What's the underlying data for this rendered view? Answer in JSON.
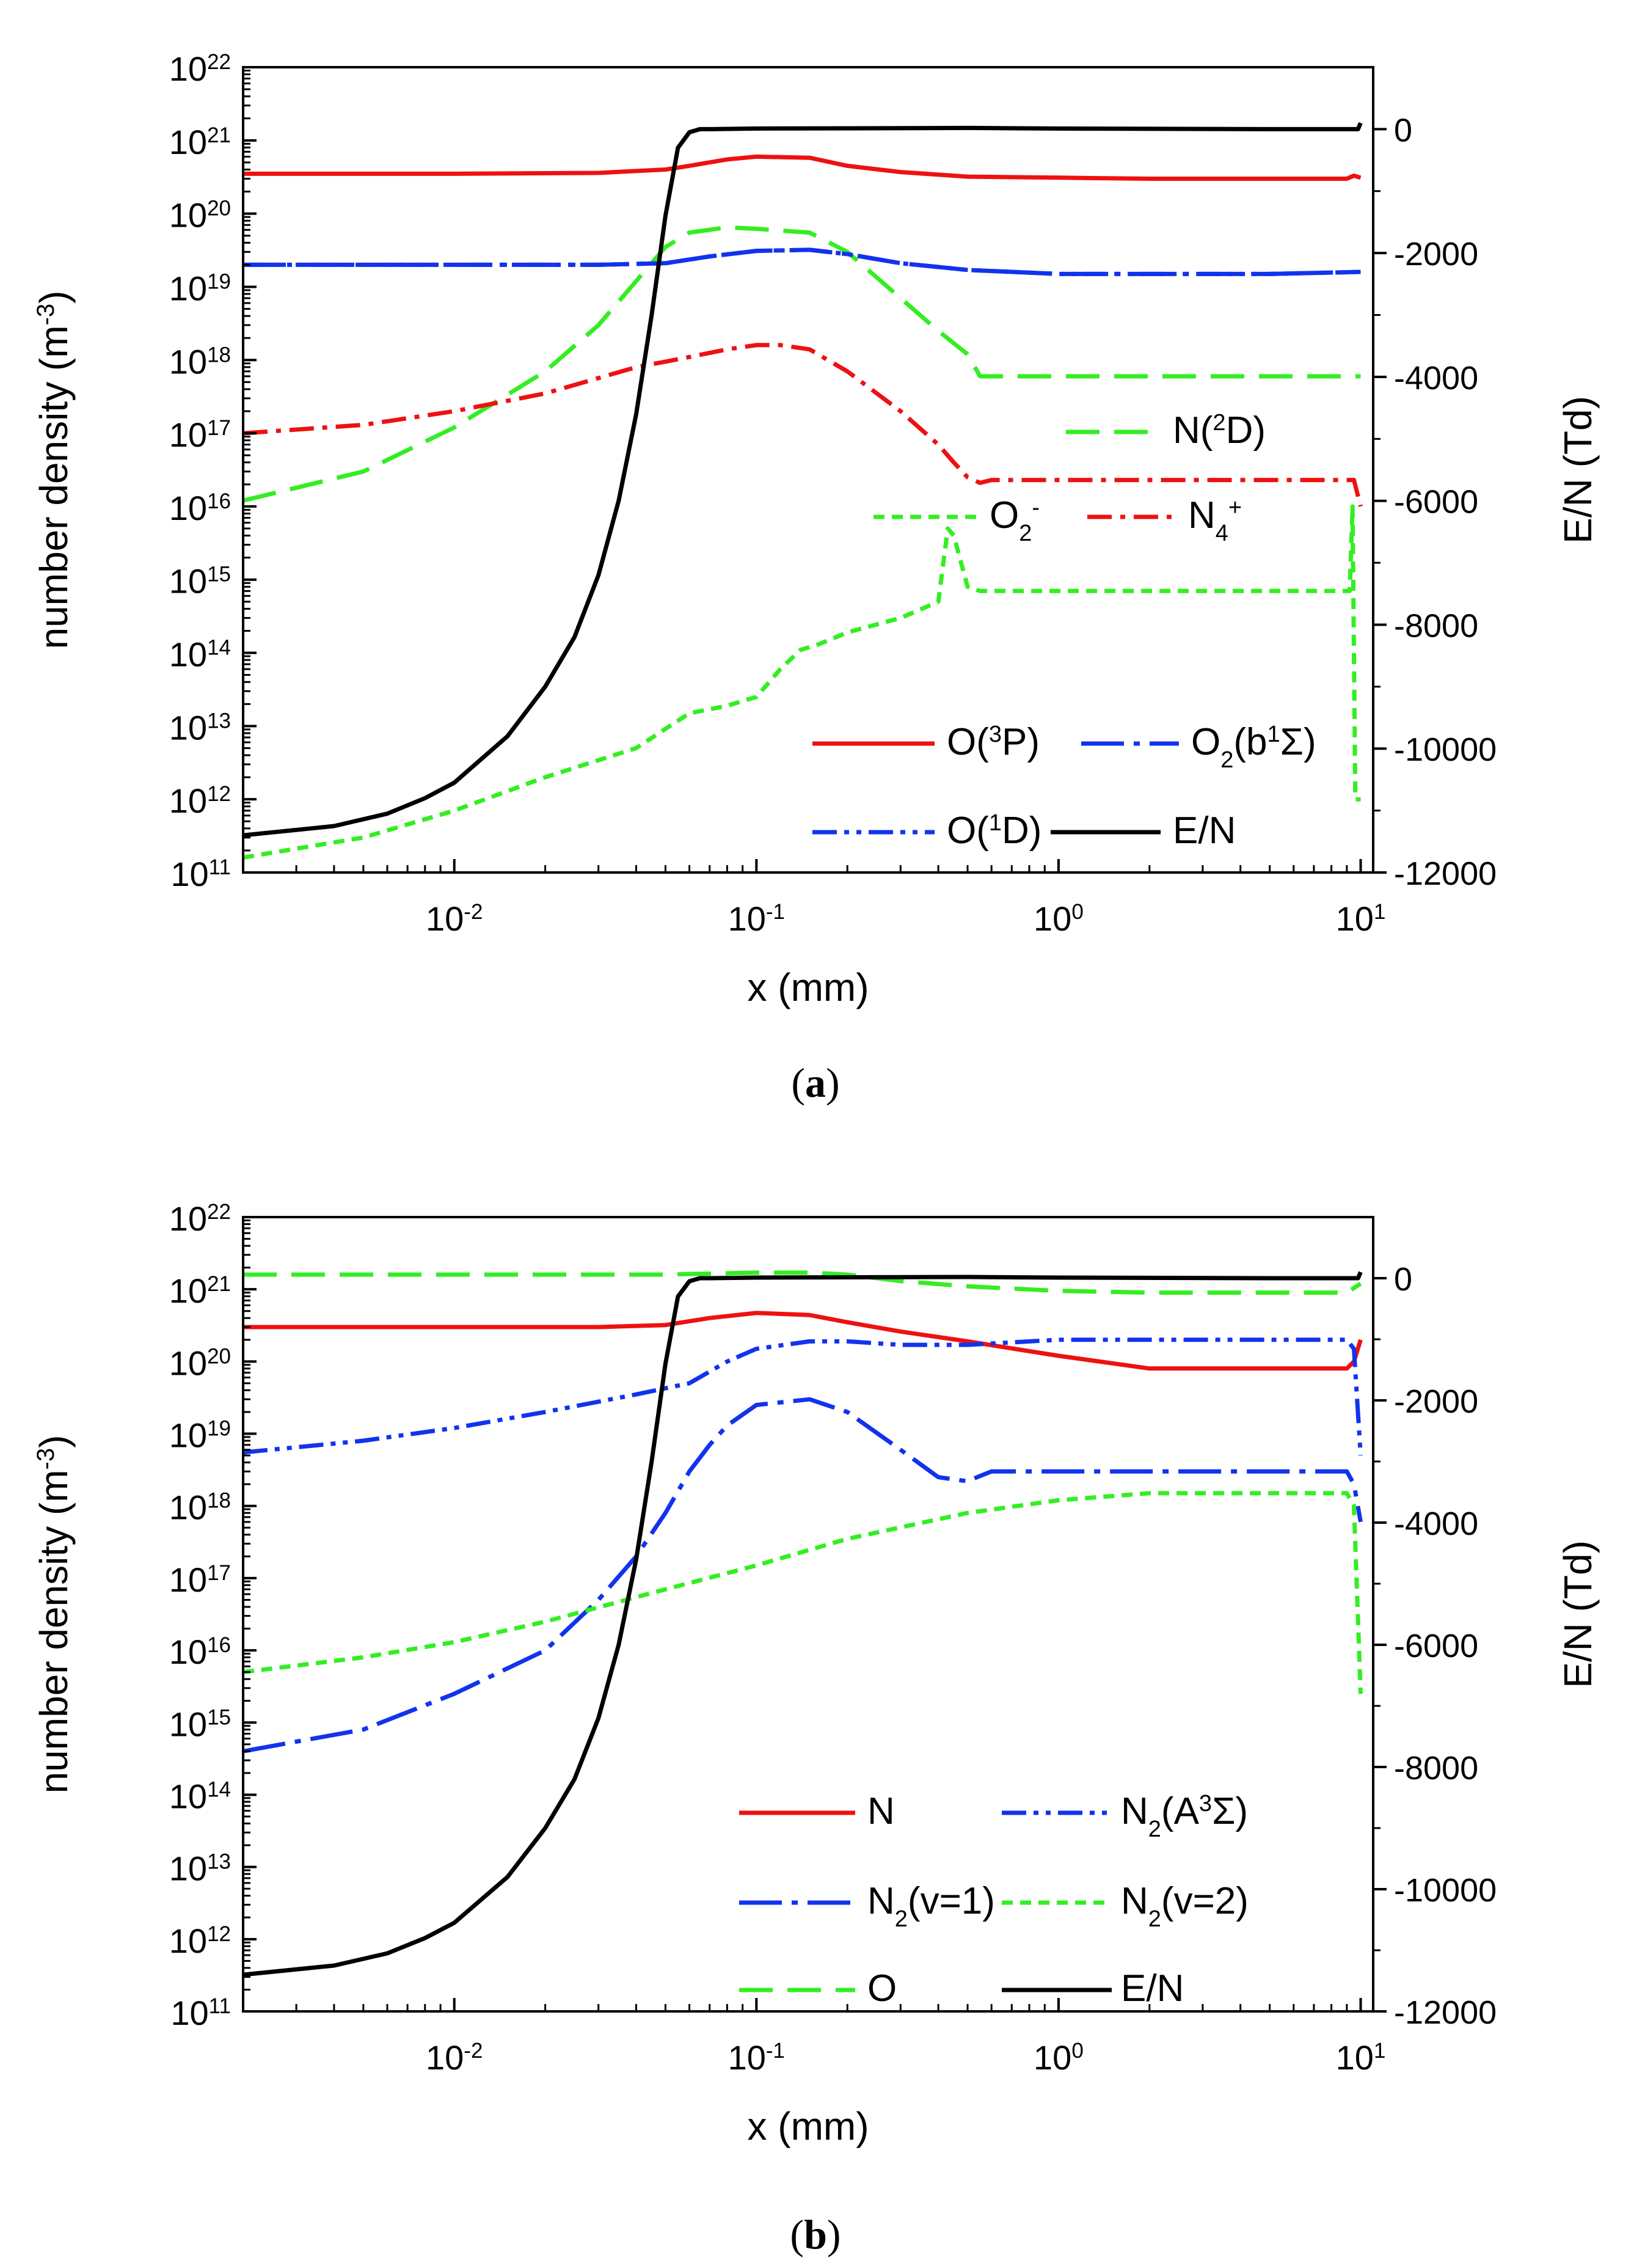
{
  "figure": {
    "panels": [
      "a",
      "b"
    ],
    "captions": [
      {
        "open": "(",
        "letter": "a",
        "close": ")"
      },
      {
        "open": "(",
        "letter": "b",
        "close": ")"
      }
    ]
  },
  "chart_data": [
    {
      "type": "line",
      "panel": "a",
      "xlabel": "x (mm)",
      "ylabel": "number density (m",
      "ylabel_sup": "-3",
      "ylabel_close": ")",
      "y2label": "E/N (Td)",
      "x_scale": "log",
      "xlim": [
        0.002,
        11
      ],
      "y_scale": "log",
      "ylim": [
        100000000000.0,
        1e+22
      ],
      "y2lim": [
        -12000,
        1000
      ],
      "x_ticks": [
        {
          "base": "10",
          "exp": "-2",
          "value": 0.01
        },
        {
          "base": "10",
          "exp": "-1",
          "value": 0.1
        },
        {
          "base": "10",
          "exp": "0",
          "value": 1
        },
        {
          "base": "10",
          "exp": "1",
          "value": 10
        }
      ],
      "y_ticks": [
        {
          "base": "10",
          "exp": "11"
        },
        {
          "base": "10",
          "exp": "12"
        },
        {
          "base": "10",
          "exp": "13"
        },
        {
          "base": "10",
          "exp": "14"
        },
        {
          "base": "10",
          "exp": "15"
        },
        {
          "base": "10",
          "exp": "16"
        },
        {
          "base": "10",
          "exp": "17"
        },
        {
          "base": "10",
          "exp": "18"
        },
        {
          "base": "10",
          "exp": "19"
        },
        {
          "base": "10",
          "exp": "20"
        },
        {
          "base": "10",
          "exp": "21"
        },
        {
          "base": "10",
          "exp": "22"
        }
      ],
      "y2_ticks": [
        "-12000",
        "-10000",
        "-8000",
        "-6000",
        "-4000",
        "-2000",
        "0"
      ],
      "legend_position": "bottom-right",
      "series": [
        {
          "name": "N(2D)",
          "label": [
            [
              "N(",
              ""
            ],
            [
              "2",
              "sup"
            ],
            [
              "D)",
              ""
            ]
          ],
          "color": "#33ee22",
          "dash": "dashed",
          "axis": "left",
          "x": [
            0.002,
            0.005,
            0.01,
            0.02,
            0.03,
            0.04,
            0.05,
            0.06,
            0.08,
            0.1,
            0.15,
            0.2,
            0.3,
            0.4,
            0.5,
            0.55,
            1,
            2,
            5,
            10
          ],
          "y": [
            1.2e+16,
            3e+16,
            1.2e+17,
            7e+17,
            3e+18,
            1.2e+19,
            3.5e+19,
            5.5e+19,
            6.5e+19,
            6.2e+19,
            5.5e+19,
            3e+19,
            7e+18,
            2.5e+18,
            1.2e+18,
            6e+17,
            6e+17,
            6e+17,
            6e+17,
            6e+17
          ]
        },
        {
          "name": "O2-",
          "label": [
            [
              "O",
              ""
            ],
            [
              "2",
              "sub"
            ],
            [
              "-",
              "sup"
            ]
          ],
          "color": "#33ee22",
          "dash": "short-dashed",
          "axis": "left",
          "x": [
            0.002,
            0.005,
            0.01,
            0.02,
            0.04,
            0.06,
            0.07,
            0.08,
            0.1,
            0.12,
            0.14,
            0.16,
            0.2,
            0.3,
            0.4,
            0.43,
            0.45,
            0.5,
            0.55,
            1,
            5,
            9.2,
            9.4,
            9.6,
            10
          ],
          "y": [
            160000000000.0,
            300000000000.0,
            700000000000.0,
            2000000000000.0,
            5000000000000.0,
            15000000000000.0,
            17000000000000.0,
            19000000000000.0,
            25000000000000.0,
            60000000000000.0,
            110000000000000.0,
            130000000000000.0,
            190000000000000.0,
            300000000000000.0,
            500000000000000.0,
            5000000000000000.0,
            4000000000000000.0,
            800000000000000.0,
            700000000000000.0,
            700000000000000.0,
            700000000000000.0,
            700000000000000.0,
            1e+16,
            1000000000000.0,
            1000000000000.0
          ]
        },
        {
          "name": "N4+",
          "label": [
            [
              "N",
              ""
            ],
            [
              "4",
              "sub"
            ],
            [
              "+",
              "sup"
            ]
          ],
          "color": "#ee1111",
          "dash": "dash-dot",
          "axis": "left",
          "x": [
            0.002,
            0.005,
            0.01,
            0.02,
            0.04,
            0.05,
            0.06,
            0.08,
            0.1,
            0.12,
            0.15,
            0.2,
            0.3,
            0.4,
            0.45,
            0.5,
            0.55,
            0.6,
            1,
            5,
            9.5,
            10
          ],
          "y": [
            1e+17,
            1.3e+17,
            2e+17,
            3.5e+17,
            8e+17,
            9.5e+17,
            1.1e+18,
            1.4e+18,
            1.6e+18,
            1.6e+18,
            1.4e+18,
            7e+17,
            2e+17,
            7e+16,
            4e+16,
            2.5e+16,
            2.1e+16,
            2.3e+16,
            2.3e+16,
            2.3e+16,
            2.3e+16,
            1e+16
          ]
        },
        {
          "name": "O(3P)",
          "label": [
            [
              "O(",
              ""
            ],
            [
              "3",
              "sup"
            ],
            [
              "P)",
              ""
            ]
          ],
          "color": "#ee1111",
          "dash": "solid",
          "axis": "left",
          "x": [
            0.002,
            0.01,
            0.03,
            0.05,
            0.06,
            0.08,
            0.1,
            0.15,
            0.2,
            0.3,
            0.5,
            1,
            2,
            5,
            9,
            9.5,
            10
          ],
          "y": [
            3.5e+20,
            3.5e+20,
            3.6e+20,
            4e+20,
            4.5e+20,
            5.5e+20,
            6e+20,
            5.8e+20,
            4.5e+20,
            3.7e+20,
            3.2e+20,
            3.1e+20,
            3e+20,
            3e+20,
            3e+20,
            3.3e+20,
            3.1e+20
          ]
        },
        {
          "name": "O2(b1Σ)",
          "label": [
            [
              "O",
              ""
            ],
            [
              "2",
              "sub"
            ],
            [
              "(b",
              ""
            ],
            [
              "1",
              "sup"
            ],
            [
              "Σ)",
              ""
            ]
          ],
          "color": "#1133ee",
          "dash": "long-dash-dot",
          "axis": "left",
          "x": [
            0.002,
            0.01,
            0.03,
            0.05,
            0.07,
            0.1,
            0.15,
            0.2,
            0.3,
            0.5,
            1,
            2,
            5,
            10
          ],
          "y": [
            2e+19,
            2e+19,
            2e+19,
            2.1e+19,
            2.6e+19,
            3.1e+19,
            3.2e+19,
            2.8e+19,
            2.1e+19,
            1.7e+19,
            1.5e+19,
            1.5e+19,
            1.5e+19,
            1.6e+19
          ]
        },
        {
          "name": "O(1D)",
          "label": [
            [
              "O(",
              ""
            ],
            [
              "1",
              "sup"
            ],
            [
              "D)",
              ""
            ]
          ],
          "color": "#1133ee",
          "dash": "dash-dot-dot",
          "axis": "left",
          "x": [
            0.002,
            0.01,
            0.03,
            0.05,
            0.07,
            0.1,
            0.15,
            0.2,
            0.3,
            0.5,
            1,
            2,
            5,
            10
          ],
          "y": [
            2e+19,
            2e+19,
            2e+19,
            2.1e+19,
            2.6e+19,
            3.1e+19,
            3.2e+19,
            2.8e+19,
            2.1e+19,
            1.7e+19,
            1.5e+19,
            1.5e+19,
            1.5e+19,
            1.6e+19
          ]
        },
        {
          "name": "E/N",
          "label": [
            [
              "E/N",
              ""
            ]
          ],
          "color": "#000000",
          "dash": "solid",
          "axis": "right",
          "x": [
            0.002,
            0.004,
            0.006,
            0.008,
            0.01,
            0.015,
            0.02,
            0.025,
            0.03,
            0.035,
            0.04,
            0.045,
            0.05,
            0.055,
            0.06,
            0.065,
            0.07,
            0.1,
            0.5,
            1,
            5,
            9.8,
            10
          ],
          "y": [
            -11400,
            -11250,
            -11050,
            -10800,
            -10550,
            -9800,
            -9000,
            -8200,
            -7200,
            -6000,
            -4600,
            -3000,
            -1400,
            -300,
            -50,
            0,
            0,
            10,
            20,
            10,
            0,
            0,
            100
          ]
        }
      ]
    },
    {
      "type": "line",
      "panel": "b",
      "xlabel": "x (mm)",
      "ylabel": "number density (m",
      "ylabel_sup": "-3",
      "ylabel_close": ")",
      "y2label": "E/N (Td)",
      "x_scale": "log",
      "xlim": [
        0.002,
        11
      ],
      "y_scale": "log",
      "ylim": [
        100000000000.0,
        1e+22
      ],
      "y2lim": [
        -12000,
        1000
      ],
      "x_ticks": [
        {
          "base": "10",
          "exp": "-2",
          "value": 0.01
        },
        {
          "base": "10",
          "exp": "-1",
          "value": 0.1
        },
        {
          "base": "10",
          "exp": "0",
          "value": 1
        },
        {
          "base": "10",
          "exp": "1",
          "value": 10
        }
      ],
      "y_ticks": [
        {
          "base": "10",
          "exp": "11"
        },
        {
          "base": "10",
          "exp": "12"
        },
        {
          "base": "10",
          "exp": "13"
        },
        {
          "base": "10",
          "exp": "14"
        },
        {
          "base": "10",
          "exp": "15"
        },
        {
          "base": "10",
          "exp": "16"
        },
        {
          "base": "10",
          "exp": "17"
        },
        {
          "base": "10",
          "exp": "18"
        },
        {
          "base": "10",
          "exp": "19"
        },
        {
          "base": "10",
          "exp": "20"
        },
        {
          "base": "10",
          "exp": "21"
        },
        {
          "base": "10",
          "exp": "22"
        }
      ],
      "y2_ticks": [
        "-12000",
        "-10000",
        "-8000",
        "-6000",
        "-4000",
        "-2000",
        "0"
      ],
      "legend_position": "bottom-right",
      "series": [
        {
          "name": "N",
          "label": [
            [
              "N",
              ""
            ]
          ],
          "color": "#ee1111",
          "dash": "solid",
          "axis": "left",
          "x": [
            0.002,
            0.01,
            0.03,
            0.05,
            0.07,
            0.1,
            0.15,
            0.2,
            0.3,
            0.5,
            1,
            2,
            5,
            9,
            9.5,
            10
          ],
          "y": [
            3e+20,
            3e+20,
            3e+20,
            3.2e+20,
            4e+20,
            4.7e+20,
            4.4e+20,
            3.5e+20,
            2.6e+20,
            1.9e+20,
            1.2e+20,
            8e+19,
            8e+19,
            8e+19,
            1e+20,
            2e+20
          ]
        },
        {
          "name": "N2(A3Σ)",
          "label": [
            [
              "N",
              ""
            ],
            [
              "2",
              "sub"
            ],
            [
              "(A",
              ""
            ],
            [
              "3",
              "sup"
            ],
            [
              "Σ)",
              ""
            ]
          ],
          "color": "#1133ee",
          "dash": "dash-dot-dot",
          "axis": "left",
          "x": [
            0.002,
            0.005,
            0.01,
            0.02,
            0.04,
            0.06,
            0.08,
            0.1,
            0.15,
            0.2,
            0.3,
            0.5,
            1,
            2,
            5,
            9,
            9.5,
            10
          ],
          "y": [
            5.5e+18,
            8e+18,
            1.2e+19,
            2e+19,
            3.5e+19,
            5e+19,
            1e+20,
            1.5e+20,
            1.9e+20,
            1.9e+20,
            1.7e+20,
            1.7e+20,
            2e+20,
            2e+20,
            2e+20,
            2e+20,
            1.5e+20,
            5e+18
          ]
        },
        {
          "name": "N2(v=1)",
          "label": [
            [
              "N",
              ""
            ],
            [
              "2",
              "sub"
            ],
            [
              "(v=1)",
              ""
            ]
          ],
          "color": "#1133ee",
          "dash": "long-dash-dot",
          "axis": "left",
          "x": [
            0.002,
            0.005,
            0.01,
            0.02,
            0.03,
            0.04,
            0.05,
            0.06,
            0.07,
            0.08,
            0.1,
            0.15,
            0.2,
            0.3,
            0.4,
            0.5,
            0.55,
            0.6,
            1,
            5,
            9,
            9.5,
            10
          ],
          "y": [
            400000000000000.0,
            800000000000000.0,
            2500000000000000.0,
            1e+16,
            5e+16,
            2e+17,
            8e+17,
            3e+18,
            7e+18,
            1.3e+19,
            2.5e+19,
            3e+19,
            2e+19,
            6e+18,
            2.5e+18,
            2.2e+18,
            2.6e+18,
            3e+18,
            3e+18,
            3e+18,
            3e+18,
            2e+18,
            6e+17
          ]
        },
        {
          "name": "N2(v=2)",
          "label": [
            [
              "N",
              ""
            ],
            [
              "2",
              "sub"
            ],
            [
              "(v=2)",
              ""
            ]
          ],
          "color": "#33ee22",
          "dash": "short-dashed",
          "axis": "left",
          "x": [
            0.002,
            0.005,
            0.01,
            0.02,
            0.05,
            0.1,
            0.2,
            0.5,
            1,
            2,
            5,
            9,
            9.5,
            10
          ],
          "y": [
            5000000000000000.0,
            8000000000000000.0,
            1.3e+16,
            2.5e+16,
            7e+16,
            1.5e+17,
            3.5e+17,
            8e+17,
            1.2e+18,
            1.5e+18,
            1.5e+18,
            1.5e+18,
            1e+18,
            2500000000000000.0
          ]
        },
        {
          "name": "O",
          "label": [
            [
              "O",
              ""
            ]
          ],
          "color": "#33ee22",
          "dash": "dashed",
          "axis": "left",
          "x": [
            0.002,
            0.01,
            0.05,
            0.1,
            0.15,
            0.2,
            0.3,
            0.5,
            1,
            2,
            5,
            9,
            10
          ],
          "y": [
            1.6e+21,
            1.6e+21,
            1.6e+21,
            1.7e+21,
            1.7e+21,
            1.6e+21,
            1.3e+21,
            1.1e+21,
            9.5e+20,
            9e+20,
            9e+20,
            9e+20,
            1.2e+21
          ]
        },
        {
          "name": "E/N",
          "label": [
            [
              "E/N",
              ""
            ]
          ],
          "color": "#000000",
          "dash": "solid",
          "axis": "right",
          "x": [
            0.002,
            0.004,
            0.006,
            0.008,
            0.01,
            0.015,
            0.02,
            0.025,
            0.03,
            0.035,
            0.04,
            0.045,
            0.05,
            0.055,
            0.06,
            0.065,
            0.07,
            0.1,
            0.5,
            1,
            5,
            9.8,
            10
          ],
          "y": [
            -11400,
            -11250,
            -11050,
            -10800,
            -10550,
            -9800,
            -9000,
            -8200,
            -7200,
            -6000,
            -4600,
            -3000,
            -1400,
            -300,
            -50,
            0,
            0,
            10,
            20,
            10,
            0,
            0,
            100
          ]
        }
      ]
    }
  ]
}
